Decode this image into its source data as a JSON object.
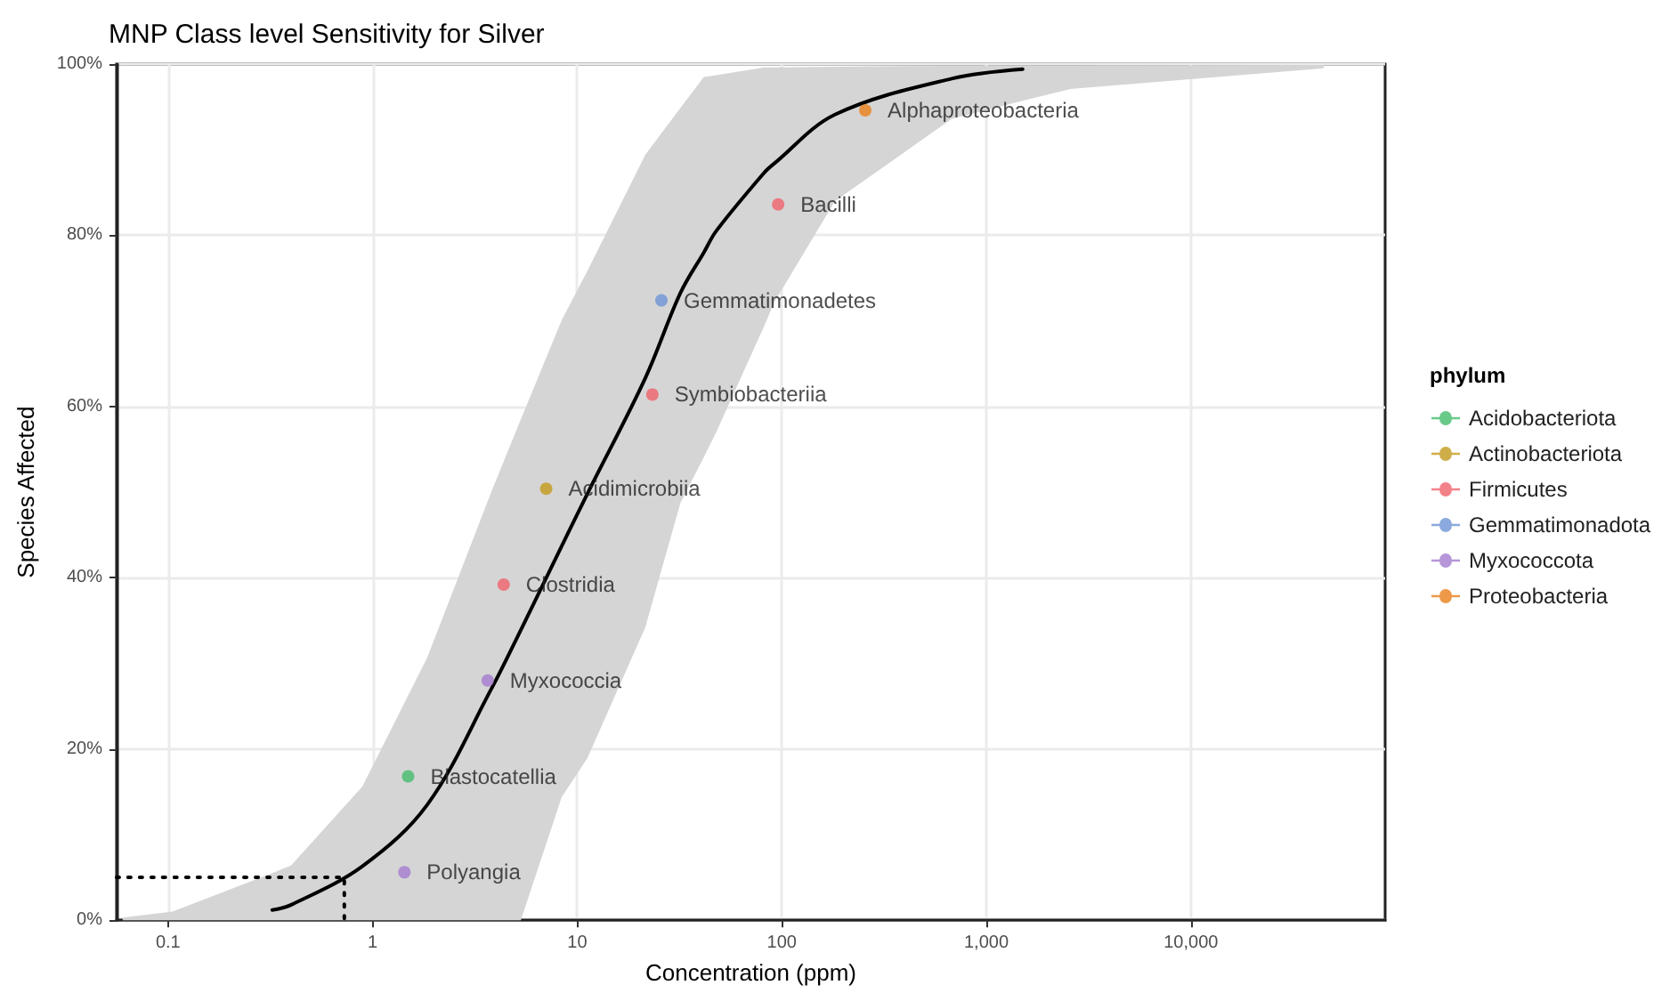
{
  "chart_data": {
    "type": "scatter",
    "title": "MNP Class level Sensitivity for Silver",
    "xlabel": "Concentration (ppm)",
    "ylabel": "Species Affected",
    "legend_title": "phylum",
    "log": "x",
    "grid": true,
    "legend": "right",
    "marker": "circle",
    "xlim": [
      0.056,
      89000
    ],
    "xticks": [
      0.1,
      1,
      10,
      100,
      {
        "value": 1000,
        "label": "1,000"
      },
      {
        "value": 10000,
        "label": "10,000"
      }
    ],
    "ylim": [
      0,
      100
    ],
    "yticks": [
      {
        "value": 0,
        "label": "0%"
      },
      {
        "value": 20,
        "label": "20%"
      },
      {
        "value": 40,
        "label": "40%"
      },
      {
        "value": 60,
        "label": "60%"
      },
      {
        "value": 80,
        "label": "80%"
      },
      {
        "value": 100,
        "label": "100%"
      }
    ],
    "series": [
      {
        "type": "line",
        "color": "#000000",
        "marker": "none",
        "line_style": "solid",
        "x": [
          0.06,
          0.105,
          0.323,
          0.4,
          0.89,
          1.85,
          3.8,
          5.3,
          8.4,
          11.2,
          21.5,
          32,
          41.6,
          47.8,
          82,
          92,
          182,
          678,
          1504,
          2580,
          44600
        ],
        "values": [
          null,
          null,
          1.2,
          1.8,
          6.3,
          13.5,
          27,
          33.9,
          43.7,
          49.8,
          63.3,
          73.3,
          78,
          80.5,
          87.3,
          88.4,
          94.1,
          98.3,
          99.4,
          null,
          null
        ],
        "lower": [
          0,
          0,
          0,
          0,
          0,
          0,
          0,
          0,
          14.4,
          18.9,
          34.2,
          48.8,
          54.1,
          57,
          69.4,
          72.2,
          84,
          93.6,
          95.7,
          97.1,
          99.5
        ],
        "upper": [
          0.3,
          1,
          5.5,
          6.4,
          15.6,
          30.7,
          50,
          58.5,
          70.1,
          75.8,
          89.4,
          94.9,
          98.5,
          98.7,
          99.6,
          99.6,
          99.7,
          99.8,
          99.8,
          99.8,
          99.9
        ]
      },
      {
        "type": "line",
        "color": "#000000",
        "marker": "none",
        "line_style": "dotted",
        "x": [
          0.056,
          0.727,
          0.727
        ],
        "values": [
          5,
          5,
          0
        ]
      },
      {
        "name": "Acidobacteriota",
        "color": "#44bb6c",
        "x": [
          1.49
        ],
        "values": [
          16.8
        ],
        "value_labels": [
          "Blastocatellia"
        ]
      },
      {
        "name": "Actinobacteriota",
        "color": "#c39a1d",
        "x": [
          7.05
        ],
        "values": [
          50.4
        ],
        "value_labels": [
          "Acidimicrobiia"
        ]
      },
      {
        "name": "Firmicutes",
        "color": "#f0616b",
        "x": [
          4.37,
          23.3,
          96
        ],
        "values": [
          39.2,
          61.4,
          83.6
        ],
        "value_labels": [
          "Clostridia",
          "Symbiobacteriia",
          "Bacilli"
        ]
      },
      {
        "name": "Gemmatimonadota",
        "color": "#6e93d6",
        "x": [
          25.8
        ],
        "values": [
          72.4
        ],
        "value_labels": [
          "Gemmatimonadetes"
        ]
      },
      {
        "name": "Myxococcota",
        "color": "#a47ad0",
        "x": [
          1.43,
          3.65
        ],
        "values": [
          5.6,
          28
        ],
        "value_labels": [
          "Polyangia",
          "Myxococcia"
        ]
      },
      {
        "name": "Proteobacteria",
        "color": "#e8801a",
        "x": [
          256
        ],
        "values": [
          94.6
        ],
        "value_labels": [
          "Alphaproteobacteria"
        ]
      }
    ]
  }
}
